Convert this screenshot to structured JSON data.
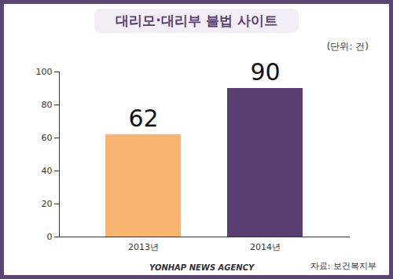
{
  "chart_data": {
    "type": "bar",
    "title": "대리모·대리부 불법 사이트",
    "ylabel": "(단위: 건)",
    "categories": [
      "2013년",
      "2014년"
    ],
    "values": [
      62,
      90
    ],
    "colors": [
      "#f9b46f",
      "#5b3f73"
    ],
    "ylim": [
      0,
      100
    ],
    "yticks": [
      0,
      20,
      40,
      60,
      80,
      100
    ],
    "grid": false,
    "data_labels": true,
    "annotations": [
      "YONHAP NEWS AGENCY",
      "자료: 보건복지부"
    ]
  }
}
